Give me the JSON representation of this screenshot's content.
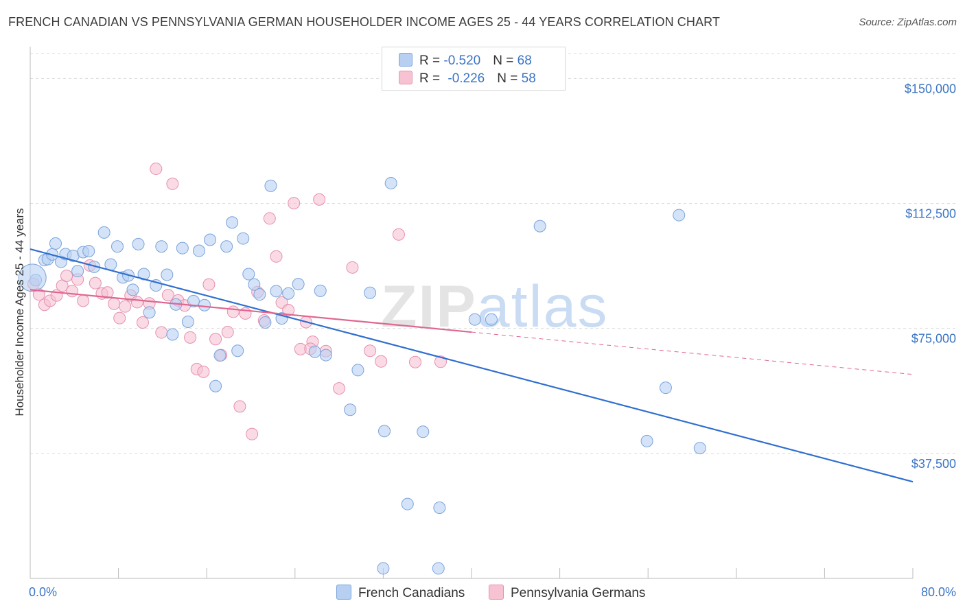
{
  "header": {
    "title": "FRENCH CANADIAN VS PENNSYLVANIA GERMAN HOUSEHOLDER INCOME AGES 25 - 44 YEARS CORRELATION CHART",
    "source": "Source: ZipAtlas.com"
  },
  "watermark": {
    "zip": "ZIP",
    "atlas": "atlas"
  },
  "legend": {
    "series1": {
      "r_label": "R = ",
      "r_value": "-0.520",
      "n_label": "N = ",
      "n_value": "68"
    },
    "series2": {
      "r_label": "R = ",
      "r_value": "-0.226",
      "n_label": "N = ",
      "n_value": "58"
    }
  },
  "colors": {
    "blue_fill": "#b7d0f2",
    "blue_stroke": "#7aa3dc",
    "blue_line": "#2f6fcf",
    "pink_fill": "#f7c3d3",
    "pink_stroke": "#e68fae",
    "pink_line": "#e0668f",
    "tick_text": "#3b74c5",
    "grid": "#d9d9d9"
  },
  "chart_data": {
    "type": "scatter",
    "title": "FRENCH CANADIAN VS PENNSYLVANIA GERMAN HOUSEHOLDER INCOME AGES 25 - 44 YEARS CORRELATION CHART",
    "xlabel": "",
    "ylabel": "Householder Income Ages 25 - 44 years",
    "xlim": [
      0,
      80
    ],
    "ylim": [
      0,
      157500
    ],
    "x_tick_labels": [
      "0.0%",
      "80.0%"
    ],
    "y_ticks": [
      {
        "value": 37500,
        "label": "$37,500"
      },
      {
        "value": 75000,
        "label": "$75,000"
      },
      {
        "value": 112500,
        "label": "$112,500"
      },
      {
        "value": 150000,
        "label": "$150,000"
      }
    ],
    "grid": true,
    "legend_position": "top-center",
    "series": [
      {
        "name": "French Canadians",
        "color": "#7aa3dc",
        "trend": {
          "x0": 0,
          "y0": 98800,
          "x1": 80,
          "y1": 29000,
          "dashed_from": null
        },
        "points": [
          [
            0.5,
            89500
          ],
          [
            1.3,
            95500
          ],
          [
            1.6,
            95800
          ],
          [
            2.0,
            97200
          ],
          [
            2.3,
            100500
          ],
          [
            2.8,
            95000
          ],
          [
            3.2,
            97300
          ],
          [
            3.9,
            96800
          ],
          [
            4.3,
            92200
          ],
          [
            4.8,
            97900
          ],
          [
            5.3,
            98200
          ],
          [
            5.8,
            93500
          ],
          [
            6.7,
            103800
          ],
          [
            7.3,
            94200
          ],
          [
            7.9,
            99600
          ],
          [
            8.4,
            90300
          ],
          [
            8.9,
            90900
          ],
          [
            9.3,
            86600
          ],
          [
            9.8,
            100300
          ],
          [
            10.3,
            91300
          ],
          [
            10.8,
            79800
          ],
          [
            11.4,
            87900
          ],
          [
            11.9,
            99600
          ],
          [
            12.4,
            91100
          ],
          [
            12.9,
            73200
          ],
          [
            13.2,
            82200
          ],
          [
            13.8,
            99100
          ],
          [
            14.3,
            77000
          ],
          [
            14.8,
            83200
          ],
          [
            15.3,
            98300
          ],
          [
            15.8,
            82000
          ],
          [
            16.3,
            101600
          ],
          [
            16.8,
            57700
          ],
          [
            17.2,
            66900
          ],
          [
            17.8,
            99600
          ],
          [
            18.3,
            106800
          ],
          [
            18.8,
            68300
          ],
          [
            19.3,
            102000
          ],
          [
            19.8,
            91300
          ],
          [
            20.3,
            88200
          ],
          [
            20.8,
            85200
          ],
          [
            21.3,
            76800
          ],
          [
            21.8,
            117800
          ],
          [
            22.3,
            86200
          ],
          [
            22.8,
            78000
          ],
          [
            23.4,
            85500
          ],
          [
            24.3,
            88300
          ],
          [
            25.8,
            68000
          ],
          [
            26.3,
            86300
          ],
          [
            26.8,
            67000
          ],
          [
            29.0,
            50600
          ],
          [
            29.7,
            62500
          ],
          [
            30.8,
            85700
          ],
          [
            32.1,
            44200
          ],
          [
            32.7,
            118600
          ],
          [
            34.2,
            22300
          ],
          [
            35.6,
            44000
          ],
          [
            37.1,
            21200
          ],
          [
            40.3,
            77700
          ],
          [
            41.8,
            77700
          ],
          [
            46.2,
            105700
          ],
          [
            55.9,
            41200
          ],
          [
            57.6,
            57200
          ],
          [
            58.8,
            109000
          ],
          [
            60.7,
            39100
          ],
          [
            32.0,
            3000
          ],
          [
            37.0,
            3000
          ],
          [
            0.2,
            90200
          ]
        ]
      },
      {
        "name": "Pennsylvania Germans",
        "color": "#e68fae",
        "trend": {
          "x0": 0,
          "y0": 86600,
          "x1": 80,
          "y1": 61200,
          "dashed_from": 40
        },
        "points": [
          [
            0.3,
            88400
          ],
          [
            0.8,
            85200
          ],
          [
            1.3,
            82100
          ],
          [
            1.8,
            83300
          ],
          [
            2.4,
            84900
          ],
          [
            2.9,
            87800
          ],
          [
            3.3,
            90800
          ],
          [
            3.8,
            86200
          ],
          [
            4.3,
            89700
          ],
          [
            4.8,
            83300
          ],
          [
            5.4,
            93900
          ],
          [
            5.9,
            88600
          ],
          [
            6.5,
            85500
          ],
          [
            7.0,
            85800
          ],
          [
            7.6,
            82400
          ],
          [
            8.1,
            78100
          ],
          [
            8.6,
            81600
          ],
          [
            9.1,
            84900
          ],
          [
            9.7,
            82900
          ],
          [
            10.2,
            76800
          ],
          [
            10.8,
            82500
          ],
          [
            11.4,
            122900
          ],
          [
            11.9,
            73800
          ],
          [
            12.5,
            85000
          ],
          [
            12.9,
            118400
          ],
          [
            13.4,
            83400
          ],
          [
            14.0,
            81900
          ],
          [
            14.5,
            72300
          ],
          [
            15.1,
            62800
          ],
          [
            15.7,
            62000
          ],
          [
            16.2,
            88200
          ],
          [
            16.8,
            71800
          ],
          [
            17.3,
            67000
          ],
          [
            17.9,
            73900
          ],
          [
            18.4,
            80000
          ],
          [
            19.0,
            51600
          ],
          [
            19.5,
            79500
          ],
          [
            20.1,
            43300
          ],
          [
            20.6,
            85900
          ],
          [
            21.2,
            77400
          ],
          [
            21.7,
            108000
          ],
          [
            22.3,
            96600
          ],
          [
            22.8,
            82800
          ],
          [
            23.4,
            80500
          ],
          [
            23.9,
            112600
          ],
          [
            24.5,
            68800
          ],
          [
            25.0,
            76900
          ],
          [
            25.6,
            71000
          ],
          [
            26.2,
            113700
          ],
          [
            26.8,
            68200
          ],
          [
            28.0,
            57000
          ],
          [
            29.2,
            93300
          ],
          [
            30.8,
            68300
          ],
          [
            31.8,
            65100
          ],
          [
            33.4,
            103200
          ],
          [
            34.9,
            64900
          ],
          [
            37.2,
            65000
          ],
          [
            25.4,
            68900
          ]
        ]
      }
    ]
  },
  "bottom_legend": {
    "item1": "French Canadians",
    "item2": "Pennsylvania Germans"
  }
}
